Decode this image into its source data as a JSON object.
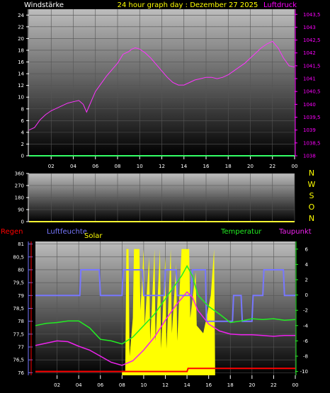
{
  "header": {
    "left_label": "Windstärke",
    "title": "24 hour graph day : Dezember 27 2025",
    "right_label": "Luftdruck"
  },
  "colors": {
    "background": "#000000",
    "header_text": "#ffff00",
    "wind_label": "#ffffff",
    "pressure": "#ff33ff",
    "wind_speed": "#33ff66",
    "wind_dir": "#ffff33",
    "rain": "#ff0000",
    "humidity": "#7777ff",
    "solar": "#ffff00",
    "temperature": "#22ee22",
    "dewpoint": "#ee22ee",
    "axis_left": "#ffffff",
    "axis_right": "#ff00ff"
  },
  "chart_data": [
    {
      "type": "line",
      "name": "pressure-wind",
      "x_tick_labels": [
        "02",
        "04",
        "06",
        "08",
        "10",
        "12",
        "14",
        "16",
        "18",
        "20",
        "22",
        "00"
      ],
      "y_left": {
        "label": "Windstärke",
        "ticks": [
          "0",
          "2",
          "4",
          "6",
          "8",
          "10",
          "12",
          "14",
          "16",
          "18",
          "20",
          "22",
          "24"
        ],
        "range": [
          0,
          25
        ]
      },
      "y_right": {
        "label": "Luftdruck",
        "ticks": [
          "1038",
          "1038,5",
          "1039",
          "1039,5",
          "1040",
          "1040,5",
          "1041",
          "1041,5",
          "1042",
          "1042,5",
          "1043",
          "1043,5"
        ],
        "range": [
          1038,
          1043.7
        ]
      },
      "series": [
        {
          "name": "Luftdruck",
          "axis": "right",
          "x": [
            0.0,
            0.5,
            1.0,
            1.5,
            2.0,
            2.5,
            3.0,
            3.5,
            4.0,
            4.5,
            4.9,
            5.2,
            5.4,
            5.7,
            6.0,
            6.5,
            7.0,
            7.5,
            8.0,
            8.5,
            9.0,
            9.3,
            9.6,
            10.0,
            10.5,
            11.0,
            11.5,
            12.0,
            12.5,
            13.0,
            13.5,
            14.0,
            14.5,
            15.0,
            15.5,
            16.0,
            16.5,
            17.0,
            17.5,
            18.0,
            18.5,
            19.0,
            19.5,
            20.0,
            20.5,
            21.0,
            21.5,
            22.0,
            22.5,
            23.0,
            23.5,
            24.0
          ],
          "y": [
            1039.0,
            1039.1,
            1039.4,
            1039.6,
            1039.75,
            1039.85,
            1039.95,
            1040.05,
            1040.1,
            1040.15,
            1040.0,
            1039.7,
            1039.9,
            1040.2,
            1040.5,
            1040.8,
            1041.1,
            1041.35,
            1041.6,
            1041.95,
            1042.05,
            1042.15,
            1042.2,
            1042.15,
            1042.0,
            1041.8,
            1041.55,
            1041.3,
            1041.05,
            1040.85,
            1040.75,
            1040.75,
            1040.85,
            1040.95,
            1041.0,
            1041.05,
            1041.05,
            1041.0,
            1041.05,
            1041.15,
            1041.3,
            1041.45,
            1041.6,
            1041.8,
            1042.0,
            1042.2,
            1042.35,
            1042.45,
            1042.2,
            1041.8,
            1041.5,
            1041.45
          ]
        },
        {
          "name": "Windstärke",
          "axis": "left",
          "x": [
            0,
            24
          ],
          "y": [
            0,
            0
          ]
        }
      ]
    },
    {
      "type": "line",
      "name": "wind-direction",
      "x_tick_labels": [],
      "y_left": {
        "ticks": [
          "0",
          "90",
          "180",
          "270",
          "360"
        ],
        "range": [
          0,
          360
        ]
      },
      "y_right": {
        "ticks": [
          "N",
          "W",
          "S",
          "O",
          "N"
        ]
      },
      "series": [
        {
          "name": "Windrichtung",
          "x": [
            0,
            24
          ],
          "y": [
            0,
            0
          ]
        }
      ]
    },
    {
      "type": "line",
      "name": "climate",
      "x_tick_labels": [
        "02",
        "04",
        "06",
        "08",
        "10",
        "12",
        "14",
        "16",
        "18",
        "20",
        "22",
        "00"
      ],
      "legend": [
        "Regen",
        "Luftfeuchte",
        "Solar",
        "Temperatur",
        "Taupunkt"
      ],
      "y_left": {
        "ticks": [
          "76",
          "76,5",
          "77",
          "77,5",
          "78",
          "78,5",
          "79",
          "79,5",
          "80",
          "80,5",
          "81"
        ],
        "range": [
          75.9,
          81.1
        ]
      },
      "y_right": {
        "ticks": [
          "-10",
          "-8",
          "-6",
          "-4",
          "-2",
          "0",
          "2",
          "4",
          "6"
        ],
        "range": [
          -10.5,
          7
        ]
      },
      "series": [
        {
          "name": "Temperatur",
          "axis": "right",
          "x": [
            0,
            1,
            2,
            3,
            4,
            5,
            6,
            7,
            8,
            9,
            10,
            11,
            12,
            12.5,
            13,
            13.5,
            14,
            14.5,
            15,
            16,
            17,
            18,
            19,
            20,
            21,
            22,
            23,
            24
          ],
          "y": [
            -4.0,
            -3.7,
            -3.6,
            -3.4,
            -3.4,
            -4.3,
            -5.8,
            -6.0,
            -6.4,
            -5.5,
            -4.0,
            -2.5,
            -0.5,
            0.5,
            1.5,
            2.5,
            3.8,
            2.5,
            0.0,
            -1.5,
            -2.5,
            -3.6,
            -3.4,
            -3.1,
            -3.2,
            -3.1,
            -3.3,
            -3.2
          ]
        },
        {
          "name": "Taupunkt",
          "axis": "right",
          "x": [
            0,
            1,
            2,
            3,
            4,
            5,
            6,
            7,
            8,
            9,
            10,
            11,
            12,
            13,
            14,
            14.5,
            15,
            16,
            17,
            18,
            19,
            20,
            21,
            22,
            23,
            24
          ],
          "y": [
            -6.6,
            -6.3,
            -6.0,
            -6.1,
            -6.7,
            -7.2,
            -8.0,
            -8.8,
            -9.2,
            -8.6,
            -7.2,
            -5.5,
            -3.3,
            -1.3,
            0.4,
            -0.3,
            -2.0,
            -3.8,
            -4.7,
            -5.1,
            -5.2,
            -5.2,
            -5.3,
            -5.4,
            -5.3,
            -5.3
          ]
        },
        {
          "name": "Luftfeuchte",
          "axis": "left",
          "x": [
            0,
            4.1,
            4.2,
            5.9,
            6.0,
            8.0,
            8.1,
            9.9,
            10.0,
            11.9,
            12.0,
            13.0,
            13.1,
            14.4,
            14.5,
            15.7,
            15.8,
            18.2,
            18.3,
            19.0,
            19.1,
            20.0,
            20.1,
            21.0,
            21.1,
            22.9,
            23.0,
            24.0
          ],
          "y": [
            79.0,
            79.0,
            80.0,
            80.0,
            79.0,
            79.0,
            80.0,
            80.0,
            79.0,
            79.0,
            80.0,
            80.0,
            79.0,
            79.0,
            80.0,
            80.0,
            78.0,
            78.0,
            79.0,
            79.0,
            78.0,
            78.0,
            79.0,
            79.0,
            80.0,
            80.0,
            79.0,
            79.0
          ]
        },
        {
          "name": "Solar",
          "axis": "right",
          "x": [
            8.0,
            8.3,
            8.4,
            8.6,
            8.7,
            9.0,
            9.1,
            9.6,
            9.7,
            10.0,
            10.1,
            10.5,
            10.6,
            11.0,
            11.1,
            11.5,
            11.6,
            12.0,
            12.1,
            12.5,
            12.6,
            13.0,
            13.1,
            13.5,
            13.6,
            14.2,
            14.3,
            14.8,
            14.9,
            15.5,
            15.8,
            16.2,
            16.5,
            16.6
          ],
          "y": [
            -9.9,
            -9.9,
            6.0,
            6.0,
            -8.0,
            -3.0,
            6.0,
            6.0,
            -2.0,
            6.0,
            -4.0,
            5.0,
            -6.0,
            6.0,
            -6.0,
            6.0,
            -7.0,
            5.0,
            -7.0,
            6.0,
            -5.0,
            4.0,
            -6.0,
            6.0,
            6.0,
            6.0,
            -3.0,
            3.0,
            -4.0,
            -5.0,
            -3.0,
            0.0,
            6.0,
            -10.0
          ]
        },
        {
          "name": "Regen",
          "axis": "right",
          "x": [
            0,
            14.0,
            14.1,
            24
          ],
          "y": [
            -10.0,
            -10.0,
            -9.6,
            -9.6
          ]
        }
      ]
    }
  ]
}
